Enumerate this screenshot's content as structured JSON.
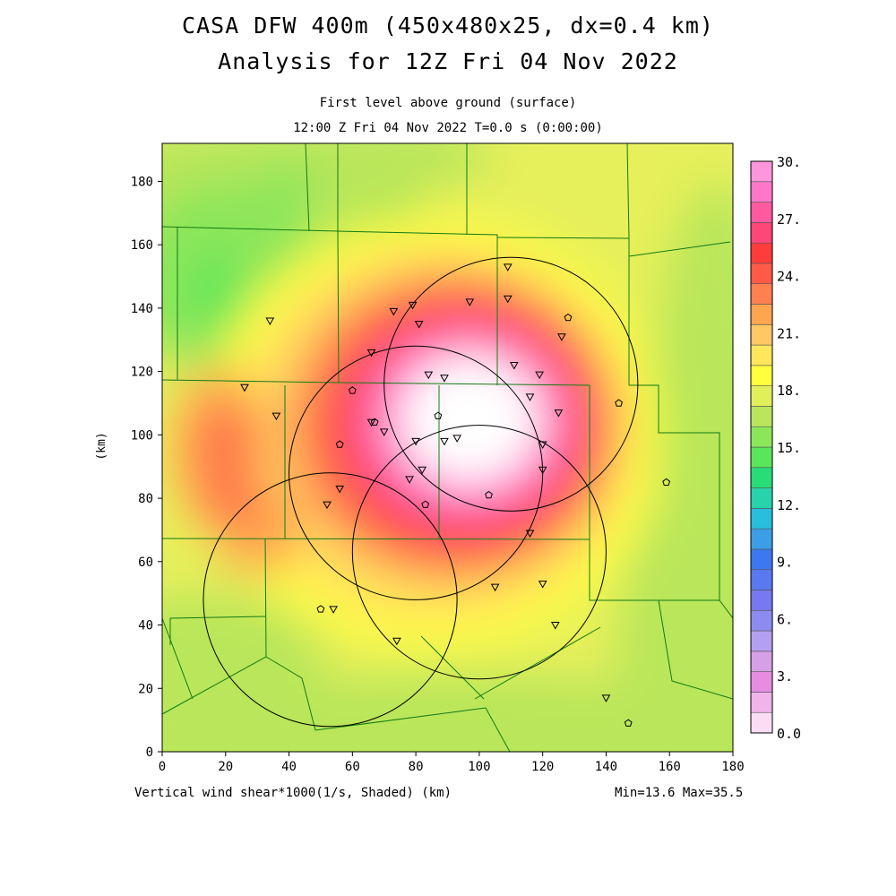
{
  "header": {
    "title_line1": "CASA DFW 400m (450x480x25, dx=0.4 km)",
    "title_line2": "Analysis for 12Z Fri 04 Nov 2022",
    "subtitle_line1": "First level above ground (surface)",
    "subtitle_line2": "12:00 Z Fri 04 Nov 2022   T=0.0 s (0:00:00)"
  },
  "footer": {
    "variable_label": "Vertical wind shear*1000(1/s, Shaded)  (km)",
    "minmax": "Min=13.6 Max=35.5"
  },
  "chart_data": {
    "type": "heatmap",
    "title": "Vertical wind shear*1000 (1/s)",
    "xlabel": "(km)",
    "ylabel": "(km)",
    "xlim": [
      0,
      180
    ],
    "ylim": [
      0,
      192
    ],
    "x_ticks": [
      0,
      20,
      40,
      60,
      80,
      100,
      120,
      140,
      160,
      180
    ],
    "y_ticks": [
      0,
      20,
      40,
      60,
      80,
      100,
      120,
      140,
      160,
      180
    ],
    "min": 13.6,
    "max": 35.5,
    "colorbar": {
      "levels": [
        0,
        1.5,
        3,
        4.5,
        6,
        7.5,
        9,
        10.5,
        12,
        13.5,
        15,
        16.5,
        18,
        19.5,
        21,
        22.5,
        24,
        25.5,
        27,
        28.5,
        30
      ],
      "labels": [
        "0.0",
        "3.",
        "6.",
        "9.",
        "12.",
        "15.",
        "18.",
        "21.",
        "24.",
        "27.",
        "30."
      ],
      "colors": [
        "#fadcf5",
        "#f0b4ea",
        "#e68ce1",
        "#d7a0e6",
        "#b4a0f0",
        "#8c8cf0",
        "#7878f0",
        "#5a78f0",
        "#3c78f0",
        "#3c9ee6",
        "#28bedc",
        "#28d2aa",
        "#28dc78",
        "#5ae65a",
        "#8ce65a",
        "#b9e65a",
        "#e1f05a",
        "#ffff3c",
        "#ffe65a",
        "#ffc864",
        "#ffa550",
        "#ff8050",
        "#ff5a46",
        "#ff3c3c",
        "#ff4678",
        "#ff5aa0",
        "#ff78c8",
        "#ff96dc"
      ]
    },
    "shear_field_centers": [
      {
        "x": 95,
        "y": 103,
        "value": 35.5
      },
      {
        "x": 18,
        "y": 98,
        "value": 25
      },
      {
        "x": 22,
        "y": 78,
        "value": 26
      },
      {
        "x": 17,
        "y": 145,
        "value": 14.5
      },
      {
        "x": 40,
        "y": 175,
        "value": 16
      }
    ],
    "radar_range_rings": [
      {
        "center_x": 110,
        "center_y": 116,
        "radius_km": 40
      },
      {
        "center_x": 80,
        "center_y": 88,
        "radius_km": 40
      },
      {
        "center_x": 100,
        "center_y": 63,
        "radius_km": 40
      },
      {
        "center_x": 53,
        "center_y": 48,
        "radius_km": 40
      }
    ],
    "stations_triangle": [
      [
        109,
        153
      ],
      [
        109,
        143
      ],
      [
        97,
        142
      ],
      [
        79,
        141
      ],
      [
        73,
        139
      ],
      [
        81,
        135
      ],
      [
        126,
        131
      ],
      [
        66,
        126
      ],
      [
        111,
        122
      ],
      [
        84,
        119
      ],
      [
        89,
        118
      ],
      [
        119,
        119
      ],
      [
        26,
        115
      ],
      [
        116,
        112
      ],
      [
        125,
        107
      ],
      [
        36,
        106
      ],
      [
        66,
        104
      ],
      [
        70,
        101
      ],
      [
        120,
        97
      ],
      [
        80,
        98
      ],
      [
        89,
        98
      ],
      [
        93,
        99
      ],
      [
        120,
        89
      ],
      [
        82,
        89
      ],
      [
        78,
        86
      ],
      [
        56,
        83
      ],
      [
        52,
        78
      ],
      [
        116,
        69
      ],
      [
        105,
        52
      ],
      [
        120,
        53
      ],
      [
        54,
        45
      ],
      [
        34,
        136
      ],
      [
        124,
        40
      ],
      [
        74,
        35
      ],
      [
        140,
        17
      ]
    ],
    "stations_pentagon": [
      [
        128,
        137
      ],
      [
        60,
        114
      ],
      [
        144,
        110
      ],
      [
        87,
        106
      ],
      [
        56,
        97
      ],
      [
        67,
        104
      ],
      [
        103,
        81
      ],
      [
        83,
        78
      ],
      [
        50,
        45
      ],
      [
        159,
        85
      ],
      [
        147,
        9
      ]
    ]
  }
}
